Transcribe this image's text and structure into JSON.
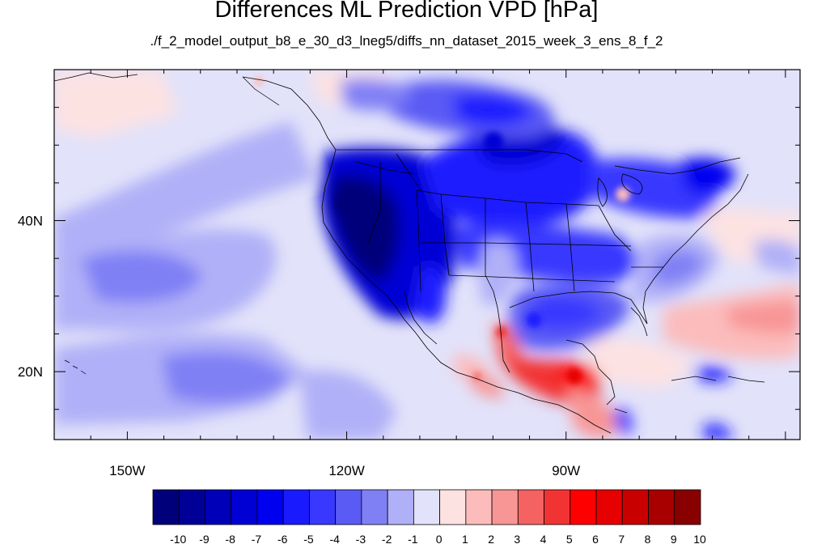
{
  "title": "Differences ML Prediction VPD [hPa]",
  "subtitle": "./f_2_model_output_b8_e_30_d3_lneg5/diffs_nn_dataset_2015_week_3_ens_8_f_2",
  "map": {
    "lon_range": [
      -160,
      -58
    ],
    "lat_range": [
      11,
      60
    ],
    "lat_ticks": [
      {
        "label": "40N",
        "value": 40
      },
      {
        "label": "20N",
        "value": 20
      }
    ],
    "lon_ticks": [
      {
        "label": "150W",
        "value": -150
      },
      {
        "label": "120W",
        "value": -120
      },
      {
        "label": "90W",
        "value": -90
      }
    ]
  },
  "colorbar": {
    "labels": [
      "-10",
      "-9",
      "-8",
      "-7",
      "-6",
      "-5",
      "-4",
      "-3",
      "-2",
      "-1",
      "0",
      "1",
      "2",
      "3",
      "4",
      "5",
      "6",
      "7",
      "8",
      "9",
      "10"
    ],
    "colors": [
      "#00007a",
      "#000096",
      "#0000b8",
      "#0000d4",
      "#0000f0",
      "#1a1aff",
      "#3838ff",
      "#5a5af5",
      "#8080f5",
      "#b0b0f8",
      "#e2e2fa",
      "#fde2e2",
      "#fcbcbc",
      "#f89595",
      "#f56262",
      "#f23333",
      "#ff0000",
      "#e60000",
      "#c80000",
      "#a80000",
      "#880000"
    ]
  }
}
